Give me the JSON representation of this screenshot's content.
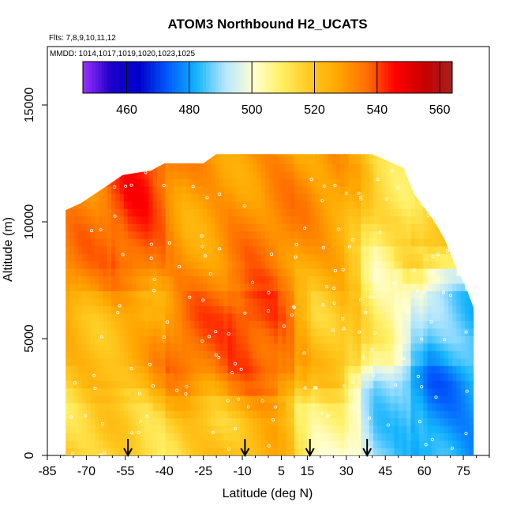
{
  "chart_data": {
    "type": "heatmap",
    "title": "ATOM3 Northbound H2_UCATS",
    "subtitle_flights": "Flts: 7,8,9,10,11,12",
    "subtitle_dates": "MMDD: 1014,1017,1019,1020,1023,1025",
    "xlabel": "Latitude (deg N)",
    "ylabel": "Altitude (m)",
    "xlim": [
      -85,
      85
    ],
    "ylim": [
      0,
      17500
    ],
    "x_ticks": [
      -85,
      -70,
      -55,
      -40,
      -25,
      -10,
      5,
      15,
      30,
      45,
      60,
      75
    ],
    "y_ticks": [
      0,
      5000,
      10000,
      15000
    ],
    "colorbar": {
      "range": [
        446,
        564
      ],
      "ticks": [
        460,
        480,
        500,
        520,
        540,
        560
      ],
      "colors": [
        "#9b30ff",
        "#1a00c8",
        "#0000cd",
        "#005cff",
        "#14b4ff",
        "#b4e6ff",
        "#ffffd2",
        "#fff064",
        "#ffc81e",
        "#ffa500",
        "#ff6e00",
        "#ff0000",
        "#c80000",
        "#a52020"
      ]
    },
    "profile_markers_lat": [
      -54,
      -9,
      16,
      38
    ],
    "field_cells": [
      {
        "lat_from": -78,
        "lat_to": -60,
        "alt_from": 0,
        "alt_to": 3000,
        "value": 515
      },
      {
        "lat_from": -78,
        "lat_to": -60,
        "alt_from": 3000,
        "alt_to": 7000,
        "value": 524
      },
      {
        "lat_from": -78,
        "lat_to": -60,
        "alt_from": 7000,
        "alt_to": 10500,
        "value": 532
      },
      {
        "lat_from": -60,
        "lat_to": -40,
        "alt_from": 0,
        "alt_to": 3000,
        "value": 514
      },
      {
        "lat_from": -60,
        "lat_to": -40,
        "alt_from": 3000,
        "alt_to": 7000,
        "value": 525
      },
      {
        "lat_from": -60,
        "lat_to": -40,
        "alt_from": 7000,
        "alt_to": 12000,
        "value": 540
      },
      {
        "lat_from": -40,
        "lat_to": -15,
        "alt_from": 0,
        "alt_to": 2500,
        "value": 520
      },
      {
        "lat_from": -40,
        "lat_to": -15,
        "alt_from": 2500,
        "alt_to": 7000,
        "value": 535
      },
      {
        "lat_from": -40,
        "lat_to": -15,
        "alt_from": 7000,
        "alt_to": 12500,
        "value": 530
      },
      {
        "lat_from": -15,
        "lat_to": 10,
        "alt_from": 0,
        "alt_to": 2500,
        "value": 522
      },
      {
        "lat_from": -15,
        "lat_to": 10,
        "alt_from": 2500,
        "alt_to": 7000,
        "value": 542
      },
      {
        "lat_from": -15,
        "lat_to": 10,
        "alt_from": 7000,
        "alt_to": 12500,
        "value": 532
      },
      {
        "lat_from": 10,
        "lat_to": 35,
        "alt_from": 0,
        "alt_to": 3000,
        "value": 505
      },
      {
        "lat_from": 10,
        "lat_to": 35,
        "alt_from": 3000,
        "alt_to": 7000,
        "value": 520
      },
      {
        "lat_from": 10,
        "lat_to": 35,
        "alt_from": 7000,
        "alt_to": 12500,
        "value": 528
      },
      {
        "lat_from": 35,
        "lat_to": 55,
        "alt_from": 0,
        "alt_to": 4000,
        "value": 490
      },
      {
        "lat_from": 35,
        "lat_to": 55,
        "alt_from": 4000,
        "alt_to": 9000,
        "value": 505
      },
      {
        "lat_from": 35,
        "lat_to": 55,
        "alt_from": 9000,
        "alt_to": 12500,
        "value": 515
      },
      {
        "lat_from": 55,
        "lat_to": 79,
        "alt_from": 0,
        "alt_to": 4000,
        "value": 478
      },
      {
        "lat_from": 55,
        "lat_to": 79,
        "alt_from": 4000,
        "alt_to": 8000,
        "value": 488
      },
      {
        "lat_from": 55,
        "lat_to": 79,
        "alt_from": 8000,
        "alt_to": 10500,
        "value": 520
      }
    ]
  }
}
